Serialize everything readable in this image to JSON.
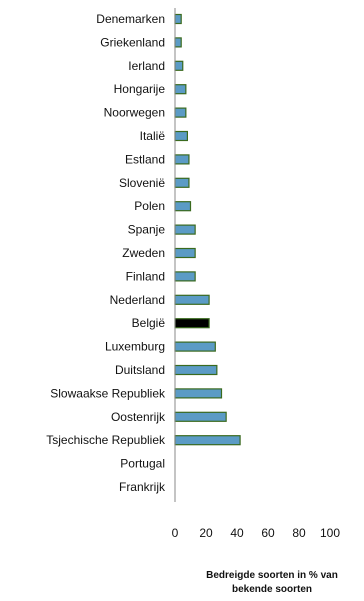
{
  "chart_data": {
    "type": "bar",
    "orientation": "horizontal",
    "categories": [
      "Denemarken",
      "Griekenland",
      "Ierland",
      "Hongarije",
      "Noorwegen",
      "Italië",
      "Estland",
      "Slovenië",
      "Polen",
      "Spanje",
      "Zweden",
      "Finland",
      "Nederland",
      "België",
      "Luxemburg",
      "Duitsland",
      "Slowaakse Republiek",
      "Oostenrijk",
      "Tsjechische Republiek",
      "Portugal",
      "Frankrijk"
    ],
    "values": [
      4,
      4,
      5,
      7,
      7,
      8,
      9,
      9,
      10,
      13,
      13,
      13,
      22,
      22,
      26,
      27,
      30,
      33,
      42,
      0,
      0
    ],
    "highlight_category": "België",
    "xlabel": [
      "Bedreigde soorten in % van",
      "bekende soorten"
    ],
    "xlim": [
      0,
      100
    ],
    "xticks": [
      0,
      20,
      40,
      60,
      80,
      100
    ],
    "grid": false,
    "legend": "none",
    "colors": {
      "bar": "#5b9bc5",
      "bar_outline": "#3a6a1e",
      "highlight": "#000000",
      "axis": "#888888",
      "text": "#111111"
    }
  }
}
